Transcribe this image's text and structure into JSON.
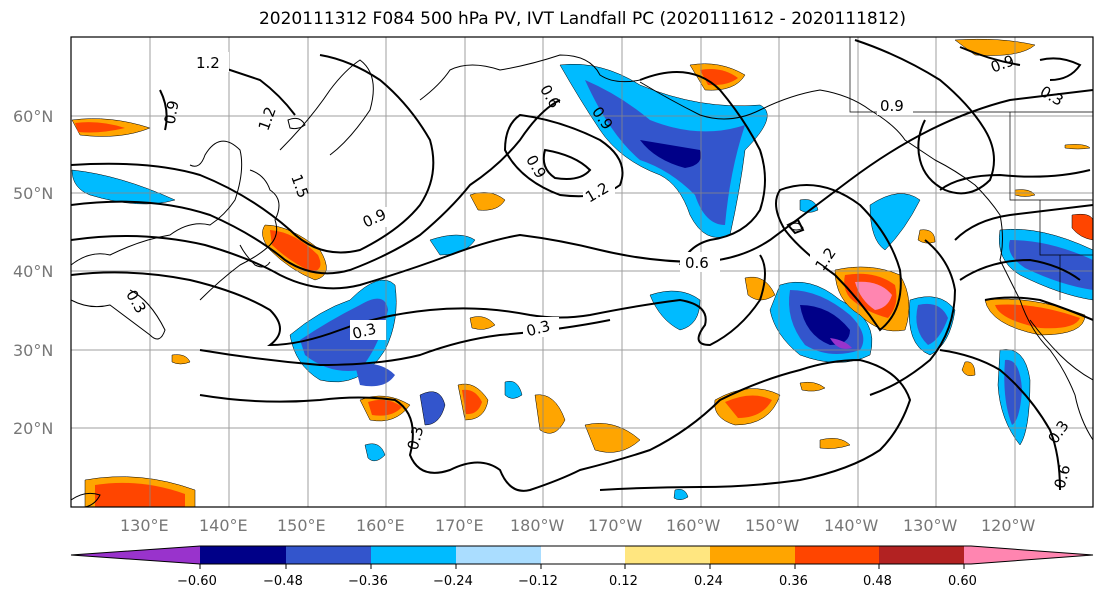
{
  "title": "2020111312 F084 500 hPa PV, IVT Landfall PC (2020111612 - 2020111812)",
  "lat_labels": [
    "60°N",
    "50°N",
    "40°N",
    "30°N",
    "20°N"
  ],
  "lon_labels": [
    "130°E",
    "140°E",
    "150°E",
    "160°E",
    "170°E",
    "180°W",
    "170°W",
    "160°W",
    "150°W",
    "140°W",
    "130°W",
    "120°W"
  ],
  "contour_labels": [
    "1.2",
    "0.9",
    "1.2",
    "1.5",
    "0.9",
    "0.6",
    "0.3",
    "0.9",
    "1.2",
    "0.9",
    "0.6",
    "1.2",
    "0.9",
    "0.3",
    "0.3",
    "0.3",
    "0.6",
    "0.3",
    "0.3",
    "0.9"
  ],
  "colorbar": {
    "colors": [
      "#9933cc",
      "#000088",
      "#3355cc",
      "#00bbff",
      "#aaddff",
      "#ffffff",
      "#ffe680",
      "#ffa500",
      "#ff4500",
      "#b22222",
      "#ff85b0"
    ],
    "tick_labels": [
      "−0.60",
      "−0.48",
      "−0.36",
      "−0.24",
      "−0.12",
      "0.12",
      "0.24",
      "0.36",
      "0.48",
      "0.60"
    ]
  },
  "colors": {
    "frame": "#000000",
    "grid": "#888888",
    "axis_label": "#777777",
    "contour": "#000000"
  }
}
